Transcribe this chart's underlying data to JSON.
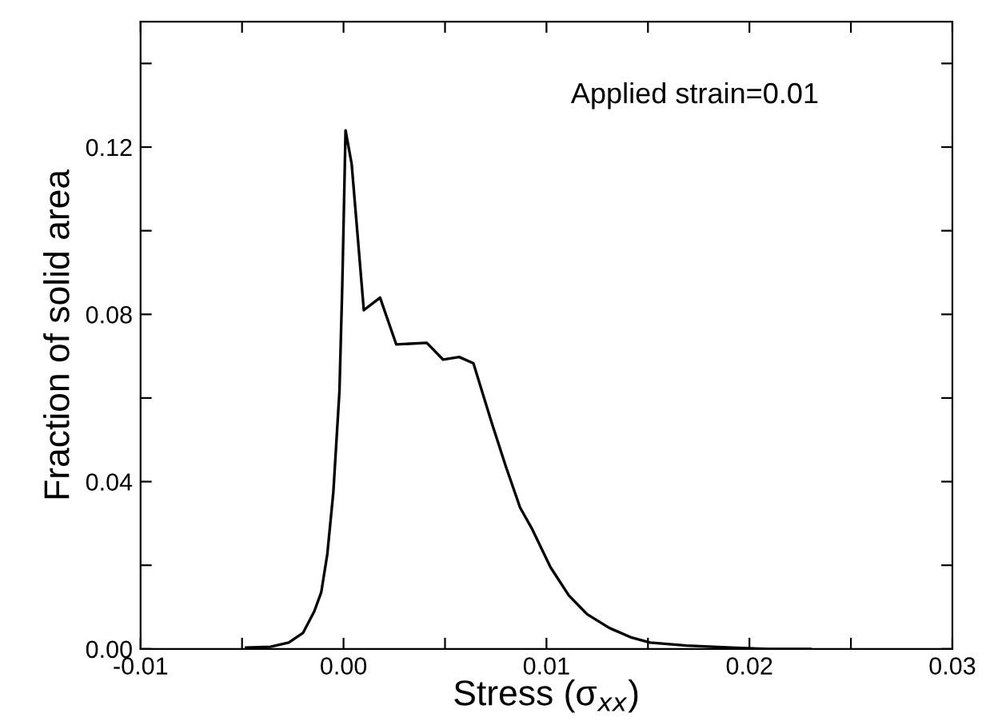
{
  "chart_data": {
    "type": "line",
    "xlabel": "Stress (σ$_{xx}$)",
    "ylabel": "Fraction of solid area",
    "annotations": [
      "Applied strain=0.01"
    ],
    "x": [
      -0.0048,
      -0.0036,
      -0.0027,
      -0.002,
      -0.00144,
      -0.0011,
      -0.0008,
      -0.0005,
      -0.0002,
      -6e-05,
      0.0001,
      0.0004,
      0.001,
      0.0018,
      0.0026,
      0.0041,
      0.0049,
      0.0057,
      0.0064,
      0.0073,
      0.008,
      0.0087,
      0.0093,
      0.0102,
      0.0111,
      0.012,
      0.0131,
      0.0142,
      0.0151,
      0.0169,
      0.0191,
      0.0209,
      0.023
    ],
    "series": [
      {
        "color": "#000000",
        "values": [
          0.0003,
          0.0005,
          0.0015,
          0.0038,
          0.009,
          0.0135,
          0.0226,
          0.0376,
          0.0617,
          0.0872,
          0.124,
          0.116,
          0.081,
          0.084,
          0.0728,
          0.0732,
          0.0692,
          0.0698,
          0.0683,
          0.0541,
          0.0436,
          0.0338,
          0.0286,
          0.0195,
          0.0128,
          0.0083,
          0.005,
          0.0027,
          0.0015,
          0.0008,
          0.0003,
          0,
          0
        ]
      }
    ],
    "xlim": [
      -0.01,
      0.03
    ],
    "ylim": [
      0,
      0.15
    ],
    "xticks": [
      -0.01,
      {
        "value": -0.005,
        "label": null
      },
      "0.00",
      {
        "value": 0.005,
        "label": null
      },
      0.01,
      {
        "value": 0.015,
        "label": null
      },
      0.02,
      {
        "value": 0.025,
        "label": null
      },
      0.03
    ],
    "yticks": [
      "0.00",
      {
        "value": 0.02,
        "label": null
      },
      0.04,
      {
        "value": 0.06,
        "label": null
      },
      0.08,
      {
        "value": 0.1,
        "label": null
      },
      0.12,
      {
        "value": 0.14,
        "label": null
      }
    ],
    "grid": false,
    "legend": false,
    "marker": "none",
    "line_style": "solid"
  }
}
